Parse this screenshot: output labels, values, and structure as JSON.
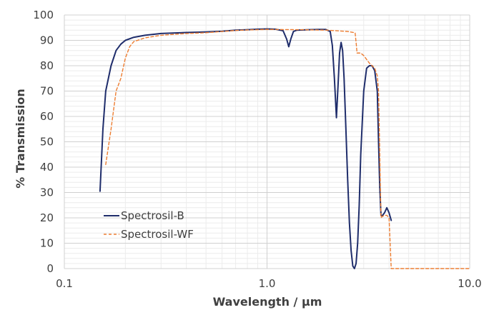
{
  "chart_data": {
    "type": "line",
    "title": "",
    "xlabel": "Wavelength / µm",
    "ylabel": "% Transmission",
    "x_scale": "log",
    "xlim": [
      0.1,
      10.0
    ],
    "ylim": [
      0,
      100
    ],
    "x_ticks": [
      {
        "value": 0.1,
        "label": "0.1"
      },
      {
        "value": 1.0,
        "label": "1.0"
      },
      {
        "value": 10.0,
        "label": "10.0"
      }
    ],
    "y_ticks": [
      {
        "value": 0,
        "label": "0"
      },
      {
        "value": 10,
        "label": "10"
      },
      {
        "value": 20,
        "label": "20"
      },
      {
        "value": 30,
        "label": "30"
      },
      {
        "value": 40,
        "label": "40"
      },
      {
        "value": 50,
        "label": "50"
      },
      {
        "value": 60,
        "label": "60"
      },
      {
        "value": 70,
        "label": "70"
      },
      {
        "value": 80,
        "label": "80"
      },
      {
        "value": 90,
        "label": "90"
      },
      {
        "value": 100,
        "label": "100"
      }
    ],
    "grid": true,
    "legend_position": "bottom-left",
    "series": [
      {
        "name": "Spectrosil-B",
        "color": "#1f2d6b",
        "style": "solid",
        "points": [
          [
            0.15,
            30.5
          ],
          [
            0.155,
            55
          ],
          [
            0.16,
            70
          ],
          [
            0.17,
            80
          ],
          [
            0.18,
            86
          ],
          [
            0.19,
            88.5
          ],
          [
            0.2,
            90
          ],
          [
            0.22,
            91.2
          ],
          [
            0.25,
            92
          ],
          [
            0.3,
            92.7
          ],
          [
            0.4,
            93.1
          ],
          [
            0.5,
            93.3
          ],
          [
            0.6,
            93.6
          ],
          [
            0.7,
            94
          ],
          [
            0.8,
            94.2
          ],
          [
            0.9,
            94.4
          ],
          [
            1.0,
            94.5
          ],
          [
            1.1,
            94.4
          ],
          [
            1.2,
            93.8
          ],
          [
            1.25,
            90.5
          ],
          [
            1.28,
            87.5
          ],
          [
            1.31,
            90.5
          ],
          [
            1.35,
            93.5
          ],
          [
            1.4,
            94
          ],
          [
            1.6,
            94.2
          ],
          [
            1.8,
            94.3
          ],
          [
            1.95,
            94.3
          ],
          [
            2.05,
            93.5
          ],
          [
            2.1,
            88
          ],
          [
            2.15,
            75
          ],
          [
            2.2,
            59.5
          ],
          [
            2.24,
            72
          ],
          [
            2.28,
            85
          ],
          [
            2.32,
            89.2
          ],
          [
            2.36,
            86
          ],
          [
            2.4,
            75
          ],
          [
            2.45,
            55
          ],
          [
            2.5,
            35
          ],
          [
            2.55,
            18
          ],
          [
            2.6,
            7
          ],
          [
            2.65,
            1
          ],
          [
            2.7,
            0
          ],
          [
            2.75,
            2
          ],
          [
            2.8,
            10
          ],
          [
            2.85,
            25
          ],
          [
            2.9,
            45
          ],
          [
            3.0,
            70
          ],
          [
            3.1,
            79
          ],
          [
            3.2,
            80
          ],
          [
            3.3,
            80
          ],
          [
            3.4,
            78
          ],
          [
            3.5,
            70
          ],
          [
            3.55,
            50
          ],
          [
            3.6,
            32
          ],
          [
            3.65,
            21
          ],
          [
            3.7,
            20.8
          ],
          [
            3.8,
            22
          ],
          [
            3.9,
            24
          ],
          [
            4.0,
            22
          ],
          [
            4.1,
            19
          ]
        ]
      },
      {
        "name": "Spectrosil-WF",
        "color": "#ed7d31",
        "style": "dashed",
        "points": [
          [
            0.16,
            41
          ],
          [
            0.17,
            55
          ],
          [
            0.18,
            70
          ],
          [
            0.19,
            75
          ],
          [
            0.2,
            83
          ],
          [
            0.21,
            87.5
          ],
          [
            0.22,
            89.5
          ],
          [
            0.25,
            91
          ],
          [
            0.3,
            92
          ],
          [
            0.4,
            92.7
          ],
          [
            0.5,
            93
          ],
          [
            0.6,
            93.5
          ],
          [
            0.7,
            93.9
          ],
          [
            0.8,
            94.1
          ],
          [
            1.0,
            94.3
          ],
          [
            1.5,
            94.2
          ],
          [
            2.0,
            94
          ],
          [
            2.5,
            93.5
          ],
          [
            2.72,
            93
          ],
          [
            2.76,
            88
          ],
          [
            2.78,
            85
          ],
          [
            2.9,
            85
          ],
          [
            3.0,
            84
          ],
          [
            3.2,
            81
          ],
          [
            3.4,
            79
          ],
          [
            3.5,
            76
          ],
          [
            3.55,
            70
          ],
          [
            3.6,
            45
          ],
          [
            3.65,
            20
          ],
          [
            3.7,
            20.5
          ],
          [
            3.8,
            21
          ],
          [
            3.9,
            21
          ],
          [
            4.0,
            20
          ],
          [
            4.05,
            10
          ],
          [
            4.1,
            0
          ],
          [
            5.0,
            0
          ],
          [
            7.0,
            0
          ],
          [
            10.0,
            0
          ]
        ]
      }
    ]
  }
}
